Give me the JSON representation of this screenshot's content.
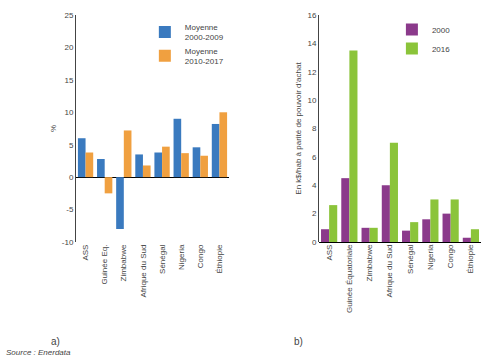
{
  "chart_data": [
    {
      "type": "bar",
      "categories": [
        "ASS",
        "Guinée Eq.",
        "Zimbabwe",
        "Afrique du Sud",
        "Sénégal",
        "Nigeria",
        "Congo",
        "Éthiopie"
      ],
      "series": [
        {
          "name": "Moyenne\n2000-2009",
          "color": "#3A7ABF",
          "values": [
            6.0,
            2.8,
            -8.0,
            3.5,
            3.8,
            9.0,
            4.6,
            8.2
          ]
        },
        {
          "name": "Moyenne\n2010-2017",
          "color": "#F0A040",
          "values": [
            3.8,
            -2.5,
            7.2,
            1.8,
            4.7,
            3.7,
            3.3,
            10.0
          ]
        }
      ],
      "ylabel": "%",
      "ylim": [
        -10,
        25
      ],
      "yticks": [
        -10,
        -5,
        0,
        5,
        10,
        15,
        20,
        25
      ],
      "grid": false,
      "legend": "upper right",
      "annotations": [
        "a)",
        "Source : Enerdata"
      ]
    },
    {
      "type": "bar",
      "categories": [
        "ASS",
        "Guinée Équatoriale",
        "Zimbabwe",
        "Afrique du Sud",
        "Sénégal",
        "Nigeria",
        "Congo",
        "Éthiopie"
      ],
      "series": [
        {
          "name": "2000",
          "color": "#8B3A8B",
          "values": [
            0.9,
            4.5,
            1.0,
            4.0,
            0.8,
            1.6,
            2.0,
            0.3
          ]
        },
        {
          "name": "2016",
          "color": "#8BC43A",
          "values": [
            2.6,
            13.5,
            1.0,
            7.0,
            1.4,
            3.0,
            3.0,
            0.9
          ]
        }
      ],
      "ylabel": "En k$/hab à parité de pouvoir d'achat",
      "ylim": [
        0,
        16
      ],
      "yticks": [
        0,
        2,
        4,
        6,
        8,
        10,
        12,
        14,
        16
      ],
      "grid": false,
      "legend": "upper right",
      "annotations": [
        "b)"
      ]
    }
  ]
}
